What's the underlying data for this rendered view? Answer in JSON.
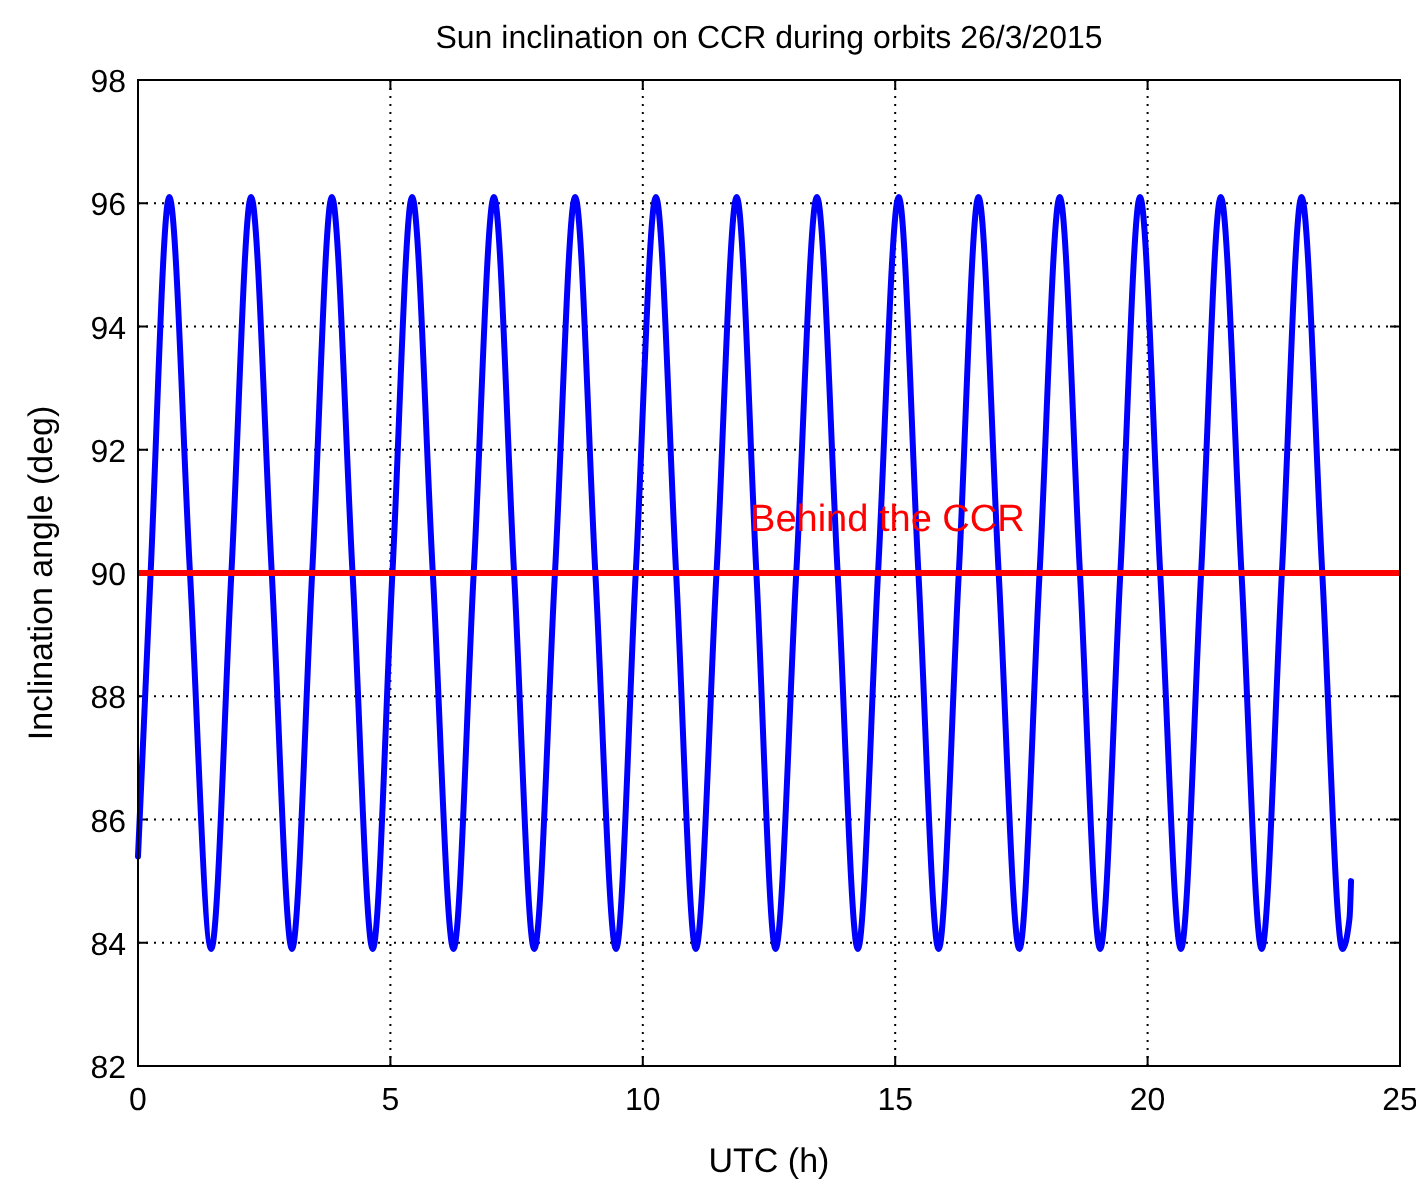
{
  "chart_data": {
    "type": "line",
    "title": "Sun inclination on CCR during orbits 26/3/2015",
    "xlabel": "UTC (h)",
    "ylabel": "Inclination angle (deg)",
    "xlim": [
      0,
      25
    ],
    "xticks": [
      0,
      5,
      10,
      15,
      20,
      25
    ],
    "ylim": [
      82,
      98
    ],
    "yticks": [
      82,
      84,
      86,
      88,
      90,
      92,
      94,
      96,
      98
    ],
    "grid": true,
    "line_style": "solid",
    "marker": "none",
    "series": [
      {
        "color": "#0000ff",
        "x": [
          0,
          0.25,
          0.62,
          1.03,
          1.45,
          1.85,
          2.24,
          2.65,
          3.05,
          3.45,
          3.84,
          4.25,
          4.65,
          5.04,
          5.43,
          5.84,
          6.25,
          6.65,
          7.05,
          7.45,
          7.85,
          8.26,
          8.66,
          9.06,
          9.47,
          9.86,
          10.26,
          10.66,
          11.05,
          11.46,
          11.86,
          12.25,
          12.63,
          13.04,
          13.45,
          13.86,
          14.26,
          14.66,
          15.07,
          15.46,
          15.86,
          16.26,
          16.65,
          17.05,
          17.46,
          17.86,
          18.26,
          18.66,
          19.06,
          19.46,
          19.85,
          20.25,
          20.66,
          21.06,
          21.45,
          21.86,
          22.26,
          22.66,
          23.05,
          23.46,
          23.86,
          24.0,
          24.03
        ],
        "values": [
          85.4,
          90,
          96.1,
          90,
          83.9,
          90,
          96.1,
          90,
          83.9,
          90,
          96.1,
          90,
          83.9,
          90,
          96.1,
          90,
          83.9,
          90,
          96.1,
          90,
          83.9,
          90,
          96.1,
          90,
          83.9,
          90,
          96.1,
          90,
          83.9,
          90,
          96.1,
          90,
          83.9,
          90,
          96.1,
          90,
          83.9,
          90,
          96.1,
          90,
          83.9,
          90,
          96.1,
          90,
          83.9,
          90,
          96.1,
          90,
          83.9,
          90,
          96.1,
          90,
          83.9,
          90,
          96.1,
          90,
          83.9,
          90,
          96.1,
          90,
          83.9,
          84.4,
          85.0
        ]
      }
    ],
    "ref_lines": [
      {
        "axis": "y",
        "value": 90,
        "label": "Behind the CCR",
        "color": "#ff0000",
        "line_style": "solid"
      }
    ]
  }
}
